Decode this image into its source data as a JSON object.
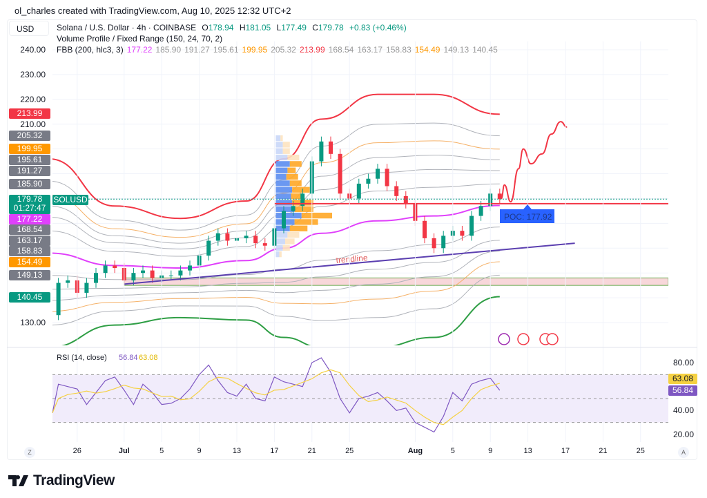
{
  "credit": "ol_charles created with TradingView.com, Aug 10, 2025 12:32 UTC+2",
  "currency": "USD",
  "legend": {
    "symbol": "Solana / U.S. Dollar · 4h · COINBASE",
    "o_label": "O",
    "o": "178.94",
    "h_label": "H",
    "h": "181.05",
    "l_label": "L",
    "l": "177.49",
    "c_label": "C",
    "c": "179.78",
    "change": "+0.83 (+0.46%)",
    "vp": "Volume Profile / Fixed Range (150, 24, 70, 2)",
    "fbb": "FBB (200, hlc3, 3)",
    "fbb_values": [
      {
        "v": "177.22",
        "color": "#e040fb"
      },
      {
        "v": "185.90",
        "color": "#999"
      },
      {
        "v": "191.27",
        "color": "#999"
      },
      {
        "v": "195.61",
        "color": "#999"
      },
      {
        "v": "199.95",
        "color": "#ff9800"
      },
      {
        "v": "205.32",
        "color": "#999"
      },
      {
        "v": "213.99",
        "color": "#f23645"
      },
      {
        "v": "168.54",
        "color": "#999"
      },
      {
        "v": "163.17",
        "color": "#999"
      },
      {
        "v": "158.83",
        "color": "#999"
      },
      {
        "v": "154.49",
        "color": "#ff9800"
      },
      {
        "v": "149.13",
        "color": "#999"
      },
      {
        "v": "140.45",
        "color": "#999"
      }
    ],
    "rsi": "RSI (14, close)",
    "rsi_value": "56.84",
    "rsi_ma": "63.08"
  },
  "price_axis": [
    "240.00",
    "230.00",
    "220.00",
    "210.00",
    "130.00"
  ],
  "price_tags": [
    {
      "v": "213.99",
      "color": "#f23645"
    },
    {
      "v": "205.32",
      "color": "#787b86"
    },
    {
      "v": "199.95",
      "color": "#ff9800"
    },
    {
      "v": "195.61",
      "color": "#787b86"
    },
    {
      "v": "191.27",
      "color": "#787b86"
    },
    {
      "v": "185.90",
      "color": "#787b86"
    },
    {
      "v": "177.22",
      "color": "#e040fb"
    },
    {
      "v": "168.54",
      "color": "#787b86"
    },
    {
      "v": "163.17",
      "color": "#787b86"
    },
    {
      "v": "158.83",
      "color": "#787b86"
    },
    {
      "v": "154.49",
      "color": "#ff9800"
    },
    {
      "v": "149.13",
      "color": "#787b86"
    },
    {
      "v": "140.45",
      "color": "#089981"
    }
  ],
  "last_price": {
    "v": "179.78",
    "countdown": "01:27:47",
    "label": "SOLUSD",
    "color": "#089981"
  },
  "poc": {
    "label": "POC: 177.92",
    "price": 177.92
  },
  "trendline_label": "trendline",
  "rsi_axis": [
    "80.00",
    "40.00",
    "20.00"
  ],
  "x_axis": [
    {
      "label": "26",
      "date": "2025-06-26"
    },
    {
      "label": "Jul",
      "date": "2025-07-01"
    },
    {
      "label": "5",
      "date": "2025-07-05"
    },
    {
      "label": "9",
      "date": "2025-07-09"
    },
    {
      "label": "13",
      "date": "2025-07-13"
    },
    {
      "label": "17",
      "date": "2025-07-17"
    },
    {
      "label": "21",
      "date": "2025-07-21"
    },
    {
      "label": "25",
      "date": "2025-07-25"
    },
    {
      "label": "Aug",
      "date": "2025-08-01"
    },
    {
      "label": "5",
      "date": "2025-08-05"
    },
    {
      "label": "9",
      "date": "2025-08-09"
    },
    {
      "label": "13",
      "date": "2025-08-13"
    },
    {
      "label": "17",
      "date": "2025-08-17"
    },
    {
      "label": "21",
      "date": "2025-08-21"
    },
    {
      "label": "25",
      "date": "2025-08-25"
    }
  ],
  "scale_buttons": {
    "left": "Z",
    "right": "A"
  },
  "brand": "TradingView",
  "chart_data": {
    "type": "candlestick",
    "title": "Solana / U.S. Dollar · 4h · COINBASE",
    "ylim": [
      120,
      245
    ],
    "candles": [
      {
        "date": "2025-06-23",
        "close": 133
      },
      {
        "date": "2025-06-24",
        "close": 146
      },
      {
        "date": "2025-06-25",
        "close": 147
      },
      {
        "date": "2025-06-26",
        "close": 142
      },
      {
        "date": "2025-06-27",
        "close": 146
      },
      {
        "date": "2025-06-28",
        "close": 150
      },
      {
        "date": "2025-06-29",
        "close": 153
      },
      {
        "date": "2025-06-30",
        "close": 152
      },
      {
        "date": "2025-07-01",
        "close": 147
      },
      {
        "date": "2025-07-02",
        "close": 150
      },
      {
        "date": "2025-07-03",
        "close": 151
      },
      {
        "date": "2025-07-04",
        "close": 148
      },
      {
        "date": "2025-07-05",
        "close": 149
      },
      {
        "date": "2025-07-06",
        "close": 149
      },
      {
        "date": "2025-07-07",
        "close": 151
      },
      {
        "date": "2025-07-08",
        "close": 153
      },
      {
        "date": "2025-07-09",
        "close": 157
      },
      {
        "date": "2025-07-10",
        "close": 163
      },
      {
        "date": "2025-07-11",
        "close": 166
      },
      {
        "date": "2025-07-12",
        "close": 163
      },
      {
        "date": "2025-07-13",
        "close": 164
      },
      {
        "date": "2025-07-14",
        "close": 165
      },
      {
        "date": "2025-07-15",
        "close": 162
      },
      {
        "date": "2025-07-16",
        "close": 161
      },
      {
        "date": "2025-07-17",
        "close": 168
      },
      {
        "date": "2025-07-18",
        "close": 175
      },
      {
        "date": "2025-07-19",
        "close": 177
      },
      {
        "date": "2025-07-20",
        "close": 182
      },
      {
        "date": "2025-07-21",
        "close": 195
      },
      {
        "date": "2025-07-22",
        "close": 203
      },
      {
        "date": "2025-07-23",
        "close": 198
      },
      {
        "date": "2025-07-24",
        "close": 182
      },
      {
        "date": "2025-07-25",
        "close": 180
      },
      {
        "date": "2025-07-26",
        "close": 186
      },
      {
        "date": "2025-07-27",
        "close": 188
      },
      {
        "date": "2025-07-28",
        "close": 192
      },
      {
        "date": "2025-07-29",
        "close": 185
      },
      {
        "date": "2025-07-30",
        "close": 181
      },
      {
        "date": "2025-07-31",
        "close": 178
      },
      {
        "date": "2025-08-01",
        "close": 171
      },
      {
        "date": "2025-08-02",
        "close": 164
      },
      {
        "date": "2025-08-03",
        "close": 160
      },
      {
        "date": "2025-08-04",
        "close": 165
      },
      {
        "date": "2025-08-05",
        "close": 167
      },
      {
        "date": "2025-08-06",
        "close": 165
      },
      {
        "date": "2025-08-07",
        "close": 173
      },
      {
        "date": "2025-08-08",
        "close": 177
      },
      {
        "date": "2025-08-09",
        "close": 182
      },
      {
        "date": "2025-08-10",
        "close": 179.78
      }
    ],
    "fbb": {
      "fib_levels": [
        0.236,
        0.382,
        0.5,
        0.618,
        0.764,
        1
      ],
      "basis": [
        {
          "date": "2025-06-23",
          "basis": 158,
          "upper": 196
        },
        {
          "date": "2025-06-30",
          "basis": 153,
          "upper": 177
        },
        {
          "date": "2025-07-07",
          "basis": 152,
          "upper": 172
        },
        {
          "date": "2025-07-14",
          "basis": 155,
          "upper": 179
        },
        {
          "date": "2025-07-18",
          "basis": 160,
          "upper": 196
        },
        {
          "date": "2025-07-22",
          "basis": 166,
          "upper": 212
        },
        {
          "date": "2025-07-28",
          "basis": 171,
          "upper": 222
        },
        {
          "date": "2025-08-03",
          "basis": 173,
          "upper": 222
        },
        {
          "date": "2025-08-10",
          "basis": 177.22,
          "upper": 213.99
        }
      ]
    },
    "volume_profile": {
      "start": "2025-07-17",
      "price_top": 205.5,
      "row_size": 2.6,
      "va_high": 196,
      "va_low": 167,
      "rows": [
        [
          4,
          2
        ],
        [
          6,
          6
        ],
        [
          6,
          6
        ],
        [
          10,
          10
        ],
        [
          12,
          10
        ],
        [
          10,
          7
        ],
        [
          9,
          10
        ],
        [
          12,
          10
        ],
        [
          14,
          15
        ],
        [
          13,
          10
        ],
        [
          14,
          18
        ],
        [
          16,
          16
        ],
        [
          22,
          26
        ],
        [
          16,
          20
        ],
        [
          12,
          15
        ],
        [
          10,
          10
        ],
        [
          8,
          8
        ],
        [
          6,
          6
        ],
        [
          3,
          2
        ]
      ]
    },
    "zone": {
      "from": "2025-07-01",
      "top": 148,
      "bottom": 145
    },
    "trendline": [
      {
        "date": "2025-07-01",
        "price": 145.5
      },
      {
        "date": "2025-08-18",
        "price": 162
      }
    ],
    "forecast": [
      {
        "date": "2025-08-10T04:00",
        "price": 180
      },
      {
        "date": "2025-08-10T12:00",
        "price": 185.5
      },
      {
        "date": "2025-08-11T04:00",
        "price": 178.7
      },
      {
        "date": "2025-08-12T00:00",
        "price": 192
      },
      {
        "date": "2025-08-12T12:00",
        "price": 200
      },
      {
        "date": "2025-08-13T08:00",
        "price": 194
      },
      {
        "date": "2025-08-14T12:00",
        "price": 198
      },
      {
        "date": "2025-08-15T12:00",
        "price": 206
      },
      {
        "date": "2025-08-16T12:00",
        "price": 211
      },
      {
        "date": "2025-08-17T04:00",
        "price": 208.8
      }
    ],
    "rsi": {
      "ylim": [
        10,
        90
      ],
      "bands": [
        70,
        50,
        30
      ],
      "values": [
        38,
        62,
        60,
        58,
        45,
        55,
        65,
        68,
        57,
        45,
        62,
        55,
        45,
        46,
        50,
        58,
        70,
        78,
        65,
        55,
        52,
        62,
        50,
        48,
        68,
        64,
        62,
        60,
        80,
        84,
        72,
        50,
        38,
        50,
        52,
        55,
        48,
        40,
        42,
        30,
        26,
        22,
        35,
        55,
        48,
        62,
        65,
        67,
        56.84
      ]
    }
  },
  "colors": {
    "up": "#089981",
    "down": "#f23645",
    "basis": "#e040fb",
    "rsi": "#7e57c2",
    "rsi_ma": "#f5d142",
    "trendline": "#5b3fb0",
    "poc": "#f23645"
  }
}
